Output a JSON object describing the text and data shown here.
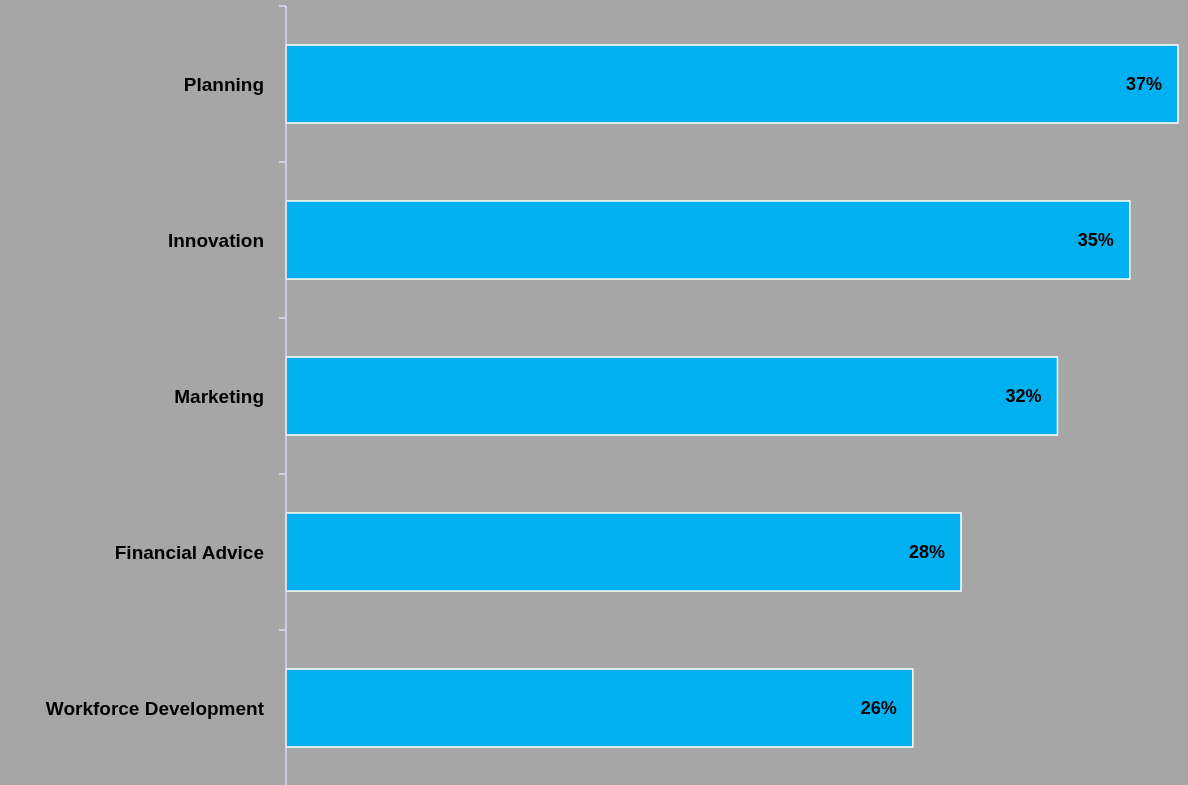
{
  "chart_data": {
    "type": "bar",
    "orientation": "horizontal",
    "categories": [
      "Planning",
      "Innovation",
      "Marketing",
      "Financial Advice",
      "Workforce Development"
    ],
    "values": [
      37,
      35,
      32,
      28,
      26
    ],
    "color": "#00b0f0",
    "value_labels": [
      "37%",
      "35%",
      "32%",
      "28%",
      "26%"
    ]
  }
}
